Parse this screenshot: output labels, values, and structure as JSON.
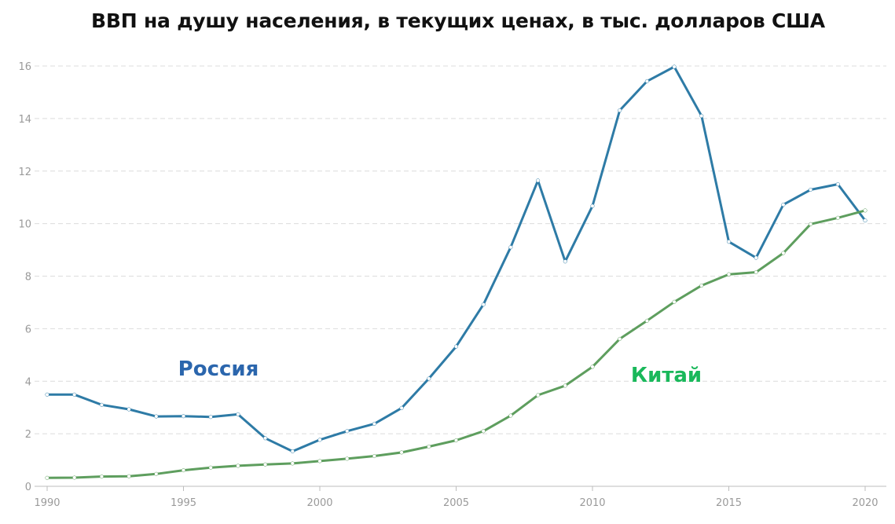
{
  "chart_data": {
    "type": "line",
    "title": "ВВП на душу населения, в текущих ценах, в тыс. долларов США",
    "xlabel": "",
    "ylabel": "",
    "xlim": [
      1990,
      2020
    ],
    "ylim": [
      0,
      16
    ],
    "grid": true,
    "x": [
      1990,
      1991,
      1992,
      1993,
      1994,
      1995,
      1996,
      1997,
      1998,
      1999,
      2000,
      2001,
      2002,
      2003,
      2004,
      2005,
      2006,
      2007,
      2008,
      2009,
      2010,
      2011,
      2012,
      2013,
      2014,
      2015,
      2016,
      2017,
      2018,
      2019,
      2020
    ],
    "x_ticks": [
      "1990",
      "1995",
      "2000",
      "2005",
      "2010",
      "2015",
      "2020"
    ],
    "x_tick_values": [
      1990,
      1995,
      2000,
      2005,
      2010,
      2015,
      2020
    ],
    "y_ticks": [
      "0",
      "2",
      "4",
      "6",
      "8",
      "10",
      "12",
      "14",
      "16"
    ],
    "y_tick_values": [
      0,
      2,
      4,
      6,
      8,
      10,
      12,
      14,
      16
    ],
    "series": [
      {
        "name": "Россия",
        "color": "#2e7ba6",
        "label_color": "#2b66ad",
        "values": [
          3.49,
          3.49,
          3.1,
          2.93,
          2.66,
          2.67,
          2.64,
          2.74,
          1.83,
          1.33,
          1.77,
          2.1,
          2.38,
          2.98,
          4.1,
          5.32,
          6.92,
          9.1,
          11.64,
          8.56,
          10.67,
          14.31,
          15.42,
          15.97,
          14.1,
          9.31,
          8.7,
          10.72,
          11.29,
          11.5,
          10.12
        ]
      },
      {
        "name": "Китай",
        "color": "#5e9e5e",
        "label_color": "#19b85a",
        "values": [
          0.32,
          0.33,
          0.37,
          0.38,
          0.47,
          0.61,
          0.71,
          0.78,
          0.83,
          0.87,
          0.96,
          1.05,
          1.15,
          1.29,
          1.51,
          1.75,
          2.1,
          2.69,
          3.47,
          3.83,
          4.55,
          5.61,
          6.3,
          7.02,
          7.64,
          8.07,
          8.15,
          8.88,
          9.98,
          10.22,
          10.5
        ]
      }
    ]
  }
}
